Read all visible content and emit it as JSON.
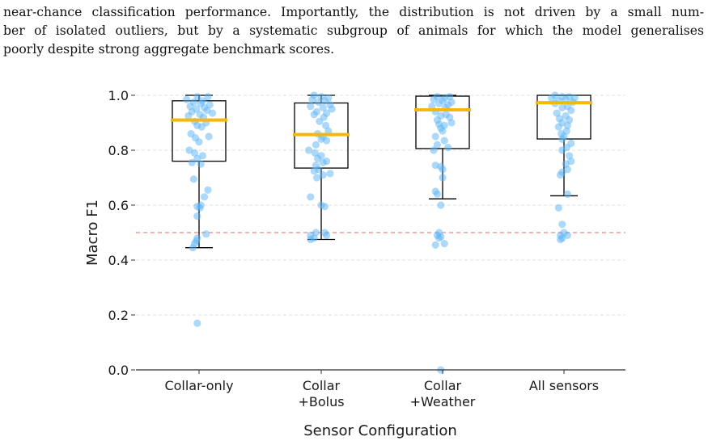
{
  "paragraph": {
    "line1": "near-chance classification performance. Importantly, the distribution is not driven by a small num-",
    "line2": "ber of isolated outliers, but by a systematic subgroup of animals for which the model generalises",
    "line3": "poorly despite strong aggregate benchmark scores."
  },
  "colors": {
    "points": "#5ab4f5",
    "median": "#f2b90c",
    "chance_line": "#f08080",
    "grid": "#d9d9d9",
    "box": "#000000"
  },
  "chart_data": {
    "type": "box",
    "xlabel": "Sensor Configuration",
    "ylabel": "Macro F1",
    "ylim": [
      0.0,
      1.0
    ],
    "yticks": [
      "0.0",
      "0.2",
      "0.4",
      "0.6",
      "0.8",
      "1.0"
    ],
    "grid": true,
    "reference_line": {
      "y": 0.5,
      "style": "dashed"
    },
    "categories": [
      {
        "label_lines": [
          "Collar-only"
        ]
      },
      {
        "label_lines": [
          "Collar",
          "+Bolus"
        ]
      },
      {
        "label_lines": [
          "Collar",
          "+Weather"
        ]
      },
      {
        "label_lines": [
          "All sensors"
        ]
      }
    ],
    "boxes": [
      {
        "q1": 0.76,
        "median": 0.91,
        "q3": 0.98,
        "whisker_low": 0.445,
        "whisker_high": 1.0
      },
      {
        "q1": 0.735,
        "median": 0.857,
        "q3": 0.972,
        "whisker_low": 0.475,
        "whisker_high": 1.0
      },
      {
        "q1": 0.806,
        "median": 0.947,
        "q3": 0.997,
        "whisker_low": 0.623,
        "whisker_high": 1.0
      },
      {
        "q1": 0.841,
        "median": 0.973,
        "q3": 1.0,
        "whisker_low": 0.634,
        "whisker_high": 1.0
      }
    ],
    "points": [
      [
        [
          -0.02,
          0.995
        ],
        [
          0.1,
          0.995
        ],
        [
          -0.14,
          0.985
        ],
        [
          0.04,
          0.98
        ],
        [
          -0.06,
          0.975
        ],
        [
          0.02,
          0.97
        ],
        [
          0.12,
          0.965
        ],
        [
          -0.1,
          0.96
        ],
        [
          0.06,
          0.955
        ],
        [
          -0.03,
          0.95
        ],
        [
          0.09,
          0.945
        ],
        [
          -0.08,
          0.94
        ],
        [
          0.15,
          0.935
        ],
        [
          0.01,
          0.93
        ],
        [
          -0.12,
          0.925
        ],
        [
          0.05,
          0.92
        ],
        [
          -0.05,
          0.905
        ],
        [
          0.08,
          0.9
        ],
        [
          -0.02,
          0.89
        ],
        [
          0.03,
          0.885
        ],
        [
          -0.09,
          0.86
        ],
        [
          0.11,
          0.85
        ],
        [
          -0.04,
          0.845
        ],
        [
          0.0,
          0.83
        ],
        [
          -0.11,
          0.8
        ],
        [
          -0.05,
          0.79
        ],
        [
          0.04,
          0.78
        ],
        [
          -0.02,
          0.77
        ],
        [
          -0.08,
          0.755
        ],
        [
          0.02,
          0.75
        ],
        [
          -0.06,
          0.695
        ],
        [
          0.1,
          0.655
        ],
        [
          0.06,
          0.63
        ],
        [
          0.02,
          0.6
        ],
        [
          -0.02,
          0.595
        ],
        [
          0.01,
          0.59
        ],
        [
          -0.02,
          0.56
        ],
        [
          0.08,
          0.495
        ],
        [
          -0.02,
          0.48
        ],
        [
          -0.03,
          0.47
        ],
        [
          -0.05,
          0.46
        ],
        [
          -0.07,
          0.445
        ],
        [
          -0.02,
          0.17
        ]
      ],
      [
        [
          -0.08,
          1.0
        ],
        [
          0.0,
          0.995
        ],
        [
          0.08,
          0.99
        ],
        [
          -0.1,
          0.985
        ],
        [
          0.04,
          0.98
        ],
        [
          -0.03,
          0.975
        ],
        [
          0.1,
          0.965
        ],
        [
          -0.12,
          0.96
        ],
        [
          0.02,
          0.955
        ],
        [
          0.12,
          0.95
        ],
        [
          -0.05,
          0.94
        ],
        [
          0.06,
          0.935
        ],
        [
          -0.08,
          0.93
        ],
        [
          0.03,
          0.92
        ],
        [
          -0.02,
          0.905
        ],
        [
          0.05,
          0.89
        ],
        [
          0.08,
          0.87
        ],
        [
          -0.04,
          0.86
        ],
        [
          0.02,
          0.85
        ],
        [
          0.0,
          0.84
        ],
        [
          0.06,
          0.835
        ],
        [
          -0.06,
          0.82
        ],
        [
          -0.14,
          0.8
        ],
        [
          -0.07,
          0.79
        ],
        [
          0.0,
          0.78
        ],
        [
          -0.04,
          0.77
        ],
        [
          0.06,
          0.76
        ],
        [
          0.02,
          0.755
        ],
        [
          -0.06,
          0.745
        ],
        [
          -0.03,
          0.73
        ],
        [
          -0.08,
          0.725
        ],
        [
          0.1,
          0.715
        ],
        [
          0.02,
          0.71
        ],
        [
          -0.05,
          0.7
        ],
        [
          -0.12,
          0.63
        ],
        [
          0.0,
          0.6
        ],
        [
          0.04,
          0.595
        ],
        [
          -0.06,
          0.5
        ],
        [
          0.04,
          0.5
        ],
        [
          -0.12,
          0.49
        ],
        [
          0.06,
          0.49
        ],
        [
          -0.08,
          0.48
        ],
        [
          -0.12,
          0.475
        ]
      ],
      [
        [
          -0.06,
          0.995
        ],
        [
          0.08,
          0.995
        ],
        [
          0.02,
          0.99
        ],
        [
          -0.1,
          0.985
        ],
        [
          0.0,
          0.98
        ],
        [
          0.1,
          0.975
        ],
        [
          -0.04,
          0.97
        ],
        [
          0.06,
          0.965
        ],
        [
          -0.12,
          0.96
        ],
        [
          0.03,
          0.955
        ],
        [
          -0.08,
          0.94
        ],
        [
          0.04,
          0.93
        ],
        [
          -0.02,
          0.925
        ],
        [
          0.08,
          0.92
        ],
        [
          -0.06,
          0.91
        ],
        [
          0.1,
          0.9
        ],
        [
          -0.04,
          0.895
        ],
        [
          0.02,
          0.89
        ],
        [
          -0.02,
          0.88
        ],
        [
          0.0,
          0.87
        ],
        [
          -0.08,
          0.85
        ],
        [
          0.02,
          0.835
        ],
        [
          -0.06,
          0.82
        ],
        [
          0.06,
          0.81
        ],
        [
          -0.1,
          0.8
        ],
        [
          -0.08,
          0.745
        ],
        [
          -0.02,
          0.74
        ],
        [
          0.0,
          0.73
        ],
        [
          0.0,
          0.7
        ],
        [
          -0.08,
          0.65
        ],
        [
          -0.06,
          0.64
        ],
        [
          -0.02,
          0.6
        ],
        [
          -0.04,
          0.5
        ],
        [
          -0.06,
          0.49
        ],
        [
          -0.02,
          0.485
        ],
        [
          -0.04,
          0.48
        ],
        [
          0.02,
          0.46
        ],
        [
          -0.08,
          0.455
        ],
        [
          -0.02,
          0.0
        ]
      ],
      [
        [
          -0.1,
          1.0
        ],
        [
          -0.02,
          0.995
        ],
        [
          0.06,
          0.995
        ],
        [
          0.12,
          0.99
        ],
        [
          -0.14,
          0.99
        ],
        [
          0.02,
          0.985
        ],
        [
          -0.06,
          0.98
        ],
        [
          0.1,
          0.975
        ],
        [
          -0.1,
          0.97
        ],
        [
          0.04,
          0.96
        ],
        [
          -0.02,
          0.955
        ],
        [
          0.08,
          0.945
        ],
        [
          -0.08,
          0.935
        ],
        [
          0.02,
          0.925
        ],
        [
          -0.05,
          0.915
        ],
        [
          0.06,
          0.91
        ],
        [
          -0.02,
          0.9
        ],
        [
          0.04,
          0.89
        ],
        [
          -0.06,
          0.885
        ],
        [
          0.03,
          0.87
        ],
        [
          -0.03,
          0.86
        ],
        [
          0.0,
          0.85
        ],
        [
          -0.02,
          0.84
        ],
        [
          0.08,
          0.825
        ],
        [
          0.03,
          0.81
        ],
        [
          -0.02,
          0.8
        ],
        [
          0.06,
          0.78
        ],
        [
          0.08,
          0.76
        ],
        [
          0.02,
          0.75
        ],
        [
          0.04,
          0.73
        ],
        [
          -0.02,
          0.72
        ],
        [
          -0.04,
          0.71
        ],
        [
          0.04,
          0.64
        ],
        [
          -0.06,
          0.59
        ],
        [
          -0.02,
          0.53
        ],
        [
          0.0,
          0.5
        ],
        [
          -0.04,
          0.49
        ],
        [
          0.04,
          0.49
        ],
        [
          -0.02,
          0.48
        ],
        [
          -0.04,
          0.475
        ]
      ]
    ]
  }
}
